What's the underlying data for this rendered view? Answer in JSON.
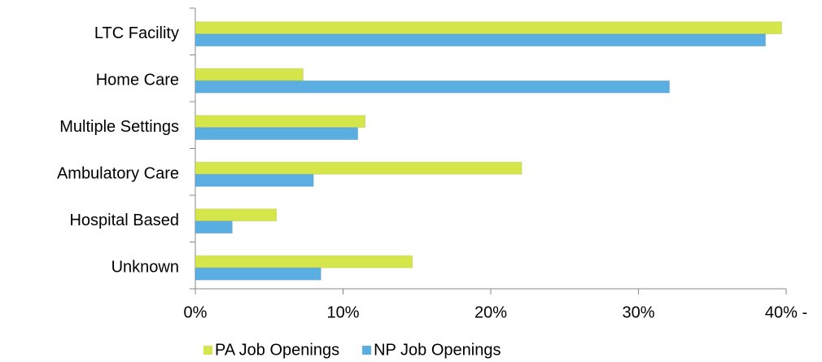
{
  "chart_data": {
    "type": "hbar",
    "categories": [
      "LTC Facility",
      "Home Care",
      "Multiple Settings",
      "Ambulatory Care",
      "Hospital Based",
      "Unknown"
    ],
    "series": [
      {
        "name": "PA Job Openings",
        "color": "#d4e64a",
        "values": [
          39.7,
          7.3,
          11.5,
          22.1,
          5.5,
          14.7
        ]
      },
      {
        "name": "NP Job Openings",
        "color": "#5aaee2",
        "values": [
          38.6,
          32.1,
          11.0,
          8.0,
          2.5,
          8.5
        ]
      }
    ],
    "xlim": [
      0,
      40
    ],
    "xticks": [
      {
        "value": 0,
        "label": "0%"
      },
      {
        "value": 10,
        "label": "10%"
      },
      {
        "value": 20,
        "label": "20%"
      },
      {
        "value": 30,
        "label": "30%"
      },
      {
        "value": 40,
        "label": "40% -"
      }
    ],
    "grid": false,
    "legend": "bottom"
  }
}
